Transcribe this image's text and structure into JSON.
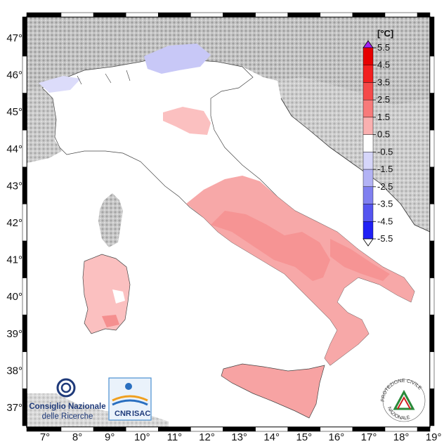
{
  "map": {
    "longitude_ticks": [
      "7°",
      "8°",
      "9°",
      "10°",
      "11°",
      "12°",
      "13°",
      "14°",
      "15°",
      "16°",
      "17°",
      "18°",
      "19°"
    ],
    "latitude_ticks": [
      "47°",
      "46°",
      "45°",
      "44°",
      "43°",
      "42°",
      "41°",
      "40°",
      "39°",
      "38°",
      "37°"
    ],
    "land_color": "#ffffff",
    "sea_color": "#ffffff",
    "relief_color": "#9a9a9a"
  },
  "colorbar": {
    "unit": "[°C]",
    "labels": [
      "5.5",
      "4.5",
      "3.5",
      "2.5",
      "1.5",
      "0.5",
      "-0.5",
      "-1.5",
      "-2.5",
      "-3.5",
      "-4.5",
      "-5.5"
    ],
    "colors": [
      "#e60000",
      "#f21f1f",
      "#f54a4a",
      "#f77a7a",
      "#fab0b0",
      "#ffffff",
      "#d6d6fa",
      "#b3b3f5",
      "#8080f0",
      "#5555f0",
      "#2020f5"
    ],
    "over_color": "#a020f0",
    "under_color": "#ffffff"
  },
  "logos": {
    "cnr_line1": "Consiglio Nazionale",
    "cnr_line2": "delle Ricerche",
    "isac_left": "CNR",
    "isac_right": "ISAC",
    "pc_arc": "PROTEZIONE CIVILE",
    "pc_arc2": "NAZIONALE"
  }
}
